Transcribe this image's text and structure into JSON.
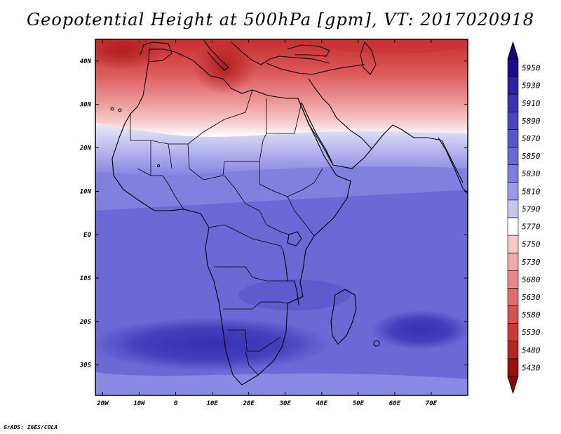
{
  "title": "Geopotential Height at 500hPa [gpm], VT: 2017020918",
  "credit": "GrADS: IGES/COLA",
  "map": {
    "lon_range": [
      -22,
      80
    ],
    "lat_range": [
      -37,
      45
    ],
    "lon_ticks": [
      {
        "value": -20,
        "label": "20W"
      },
      {
        "value": -10,
        "label": "10W"
      },
      {
        "value": 0,
        "label": "0"
      },
      {
        "value": 10,
        "label": "10E"
      },
      {
        "value": 20,
        "label": "20E"
      },
      {
        "value": 30,
        "label": "30E"
      },
      {
        "value": 40,
        "label": "40E"
      },
      {
        "value": 50,
        "label": "50E"
      },
      {
        "value": 60,
        "label": "60E"
      },
      {
        "value": 70,
        "label": "70E"
      }
    ],
    "lat_ticks": [
      {
        "value": 40,
        "label": "40N"
      },
      {
        "value": 30,
        "label": "30N"
      },
      {
        "value": 20,
        "label": "20N"
      },
      {
        "value": 10,
        "label": "10N"
      },
      {
        "value": 0,
        "label": "EQ"
      },
      {
        "value": -10,
        "label": "10S"
      },
      {
        "value": -20,
        "label": "20S"
      },
      {
        "value": -30,
        "label": "30S"
      }
    ]
  },
  "colorbar": {
    "levels": [
      {
        "label": "5950",
        "color": "#1a0c8c"
      },
      {
        "label": "5930",
        "color": "#2c22a6"
      },
      {
        "label": "5910",
        "color": "#3b33b6"
      },
      {
        "label": "5890",
        "color": "#4a44c2"
      },
      {
        "label": "5870",
        "color": "#5a56cc"
      },
      {
        "label": "5850",
        "color": "#6a69d6"
      },
      {
        "label": "5830",
        "color": "#7d7de0"
      },
      {
        "label": "5810",
        "color": "#9a9ae8"
      },
      {
        "label": "5790",
        "color": "#c6c6f2"
      },
      {
        "label": "5770",
        "color": "#ffffff"
      },
      {
        "label": "5750",
        "color": "#f8c8c8"
      },
      {
        "label": "5730",
        "color": "#f0a8a8"
      },
      {
        "label": "5680",
        "color": "#e88888"
      },
      {
        "label": "5630",
        "color": "#e06c6c"
      },
      {
        "label": "5580",
        "color": "#d85050"
      },
      {
        "label": "5530",
        "color": "#cc3838"
      },
      {
        "label": "5480",
        "color": "#b82424"
      },
      {
        "label": "5430",
        "color": "#9a1010"
      }
    ],
    "top_arrow_color": "#14067a",
    "bottom_arrow_color": "#8a0808"
  },
  "field_regions": [
    {
      "id": "blue-base",
      "value": 5850,
      "color": "#6a69d6"
    },
    {
      "id": "north-pink",
      "value": 5750,
      "color": "#f8c8c8"
    },
    {
      "id": "north-red",
      "value": 5630,
      "color": "#e06c6c"
    },
    {
      "id": "med-dark-red",
      "value": 5480,
      "color": "#b82424"
    }
  ]
}
